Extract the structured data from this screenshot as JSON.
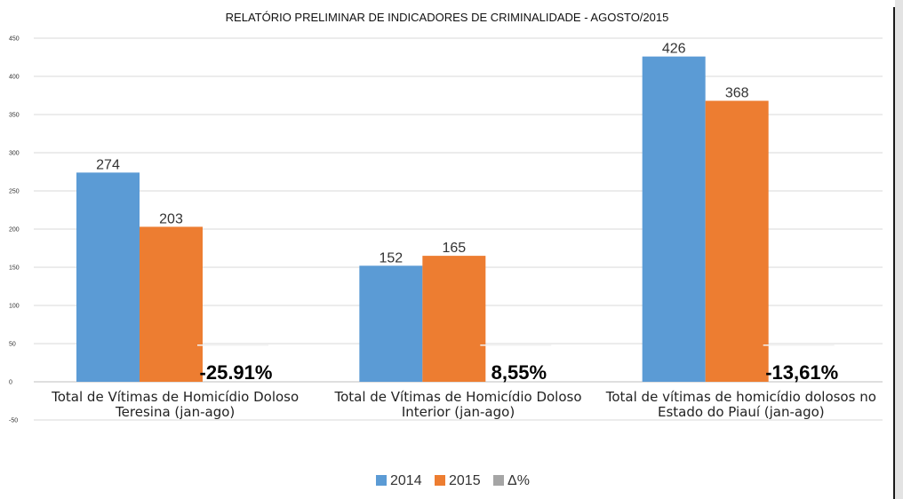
{
  "chart_data": {
    "type": "bar",
    "title": "RELATÓRIO PRELIMINAR DE INDICADORES DE CRIMINALIDADE - AGOSTO/2015",
    "categories": [
      [
        "Total de Vítimas de Homicídio Doloso",
        "Teresina (jan-ago)"
      ],
      [
        "Total de Vítimas de Homicídio Doloso",
        "Interior (jan-ago)"
      ],
      [
        "Total de vítimas de homicídio dolosos no",
        "Estado do Piauí  (jan-ago)"
      ]
    ],
    "series": [
      {
        "name": "2014",
        "values": [
          274,
          152,
          426
        ],
        "labels": [
          "274",
          "152",
          "426"
        ],
        "color": "#5b9bd5"
      },
      {
        "name": "2015",
        "values": [
          203,
          165,
          368
        ],
        "labels": [
          "203",
          "165",
          "368"
        ],
        "color": "#ed7d31"
      },
      {
        "name": "Δ%",
        "values": [
          -25.91,
          8.55,
          -13.61
        ],
        "labels": [
          "-25.91%",
          "8,55%",
          "-13,61%"
        ],
        "color": "#a5a5a5"
      }
    ],
    "yticks": [
      450,
      400,
      350,
      300,
      250,
      200,
      150,
      100,
      50,
      0,
      -50
    ],
    "ylim": [
      -50,
      450
    ],
    "grid": true,
    "legend": "bottom"
  }
}
